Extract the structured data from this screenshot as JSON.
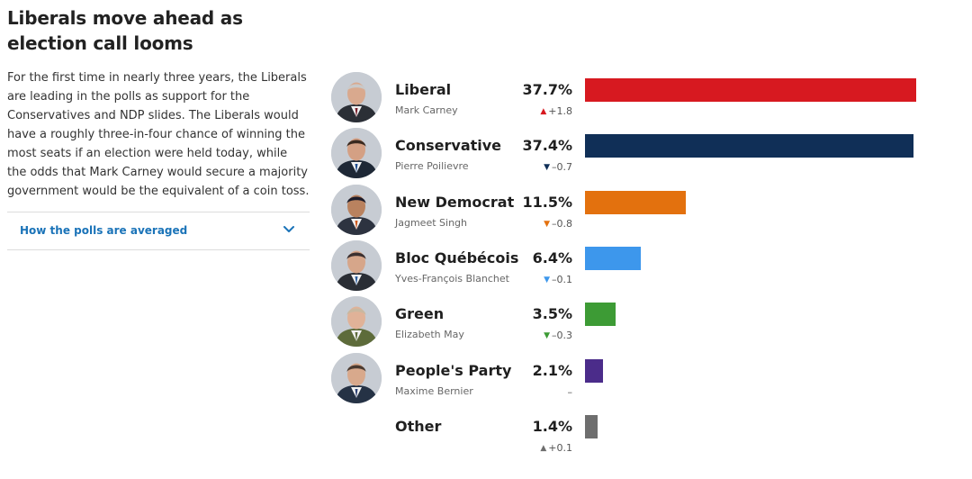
{
  "header": {
    "title": "Liberals move ahead as election call looms",
    "description": "For the first time in nearly three years, the Liberals are leading in the polls as support for the Conservatives and NDP slides. The Liberals would have a roughly three-in-four chance of winning the most seats if an election were held today, while the odds that Mark Carney would secure a majority government would be the equivalent of a coin toss."
  },
  "accordion": {
    "label": "How the polls are averaged",
    "icon": "chevron-down-icon"
  },
  "chart_data": {
    "type": "bar",
    "orientation": "horizontal",
    "categories": [
      "Liberal",
      "Conservative",
      "New Democrat",
      "Bloc Québécois",
      "Green",
      "People's Party",
      "Other"
    ],
    "values": [
      37.7,
      37.4,
      11.5,
      6.4,
      3.5,
      2.1,
      1.4
    ],
    "value_labels": [
      "37.7%",
      "37.4%",
      "11.5%",
      "6.4%",
      "3.5%",
      "2.1%",
      "1.4%"
    ],
    "xlim": [
      0,
      37.7
    ],
    "grid": false,
    "legend": "none",
    "rows": [
      {
        "party": "Liberal",
        "leader": "Mark Carney",
        "value": 37.7,
        "pct": "37.7%",
        "direction": "up",
        "change": "+1.8",
        "color": "#d71920",
        "avatar": true,
        "skin": "#d9a98e",
        "hair": "#c9c9c9",
        "suit": "#2b2f36",
        "tie": "#7a1f2b"
      },
      {
        "party": "Conservative",
        "leader": "Pierre Poilievre",
        "value": 37.4,
        "pct": "37.4%",
        "direction": "down",
        "change": "–0.7",
        "color": "#102f57",
        "avatar": true,
        "skin": "#d4a084",
        "hair": "#3a2a20",
        "suit": "#1e2836",
        "tie": "#1f4c8f"
      },
      {
        "party": "New Democrat",
        "leader": "Jagmeet Singh",
        "value": 11.5,
        "pct": "11.5%",
        "direction": "down",
        "change": "–0.8",
        "color": "#e3710e",
        "avatar": true,
        "skin": "#b9825f",
        "hair": "#1c1c2a",
        "suit": "#2d3340",
        "tie": "#cf5a1f"
      },
      {
        "party": "Bloc Québécois",
        "leader": "Yves-François Blanchet",
        "value": 6.4,
        "pct": "6.4%",
        "direction": "down",
        "change": "–0.1",
        "color": "#3d97ec",
        "avatar": true,
        "skin": "#d6a68a",
        "hair": "#3b3030",
        "suit": "#2a2e35",
        "tie": "#2d5f9e"
      },
      {
        "party": "Green",
        "leader": "Elizabeth May",
        "value": 3.5,
        "pct": "3.5%",
        "direction": "down",
        "change": "–0.3",
        "color": "#3d9b35",
        "avatar": true,
        "skin": "#e0b298",
        "hair": "#c9b8a0",
        "suit": "#5d6b3a",
        "tie": "#5d6b3a"
      },
      {
        "party": "People's Party",
        "leader": "Maxime Bernier",
        "value": 2.1,
        "pct": "2.1%",
        "direction": "none",
        "change": "–",
        "color": "#4b2c8a",
        "avatar": true,
        "skin": "#d8a98c",
        "hair": "#4a3a30",
        "suit": "#253245",
        "tie": "#2a3f73"
      },
      {
        "party": "Other",
        "leader": "",
        "value": 1.4,
        "pct": "1.4%",
        "direction": "up",
        "change": "+0.1",
        "color": "#6e6e6e",
        "avatar": false
      }
    ]
  }
}
